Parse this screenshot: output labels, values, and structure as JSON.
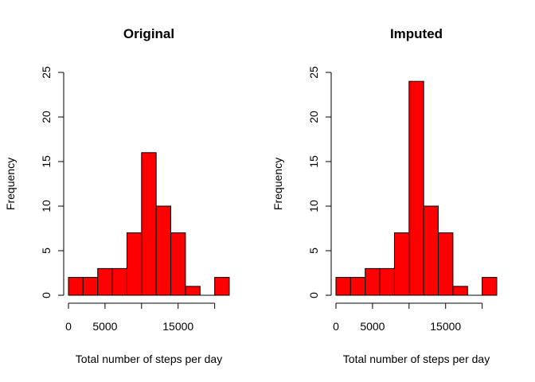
{
  "chart_data": [
    {
      "type": "bar",
      "title": "Original",
      "xlabel": "Total number of steps per day",
      "ylabel": "Frequency",
      "bin_edges": [
        0,
        2000,
        4000,
        6000,
        8000,
        10000,
        12000,
        14000,
        16000,
        18000,
        20000,
        22000
      ],
      "values": [
        2,
        2,
        3,
        3,
        7,
        16,
        10,
        7,
        1,
        0,
        2
      ],
      "xlim": [
        0,
        22000
      ],
      "ylim": [
        0,
        25
      ],
      "xticks": [
        0,
        5000,
        15000
      ],
      "xtick_labels": [
        "0",
        "5000",
        "15000"
      ],
      "yticks": [
        0,
        5,
        10,
        15,
        20,
        25
      ],
      "ytick_labels": [
        "0",
        "5",
        "10",
        "15",
        "20",
        "25"
      ],
      "bar_color": "#ff0000",
      "grid": false
    },
    {
      "type": "bar",
      "title": "Imputed",
      "xlabel": "Total number of steps per day",
      "ylabel": "Frequency",
      "bin_edges": [
        0,
        2000,
        4000,
        6000,
        8000,
        10000,
        12000,
        14000,
        16000,
        18000,
        20000,
        22000
      ],
      "values": [
        2,
        2,
        3,
        3,
        7,
        24,
        10,
        7,
        1,
        0,
        2
      ],
      "xlim": [
        0,
        22000
      ],
      "ylim": [
        0,
        25
      ],
      "xticks": [
        0,
        5000,
        15000
      ],
      "xtick_labels": [
        "0",
        "5000",
        "15000"
      ],
      "yticks": [
        0,
        5,
        10,
        15,
        20,
        25
      ],
      "ytick_labels": [
        "0",
        "5",
        "10",
        "15",
        "20",
        "25"
      ],
      "bar_color": "#ff0000",
      "grid": false
    }
  ]
}
